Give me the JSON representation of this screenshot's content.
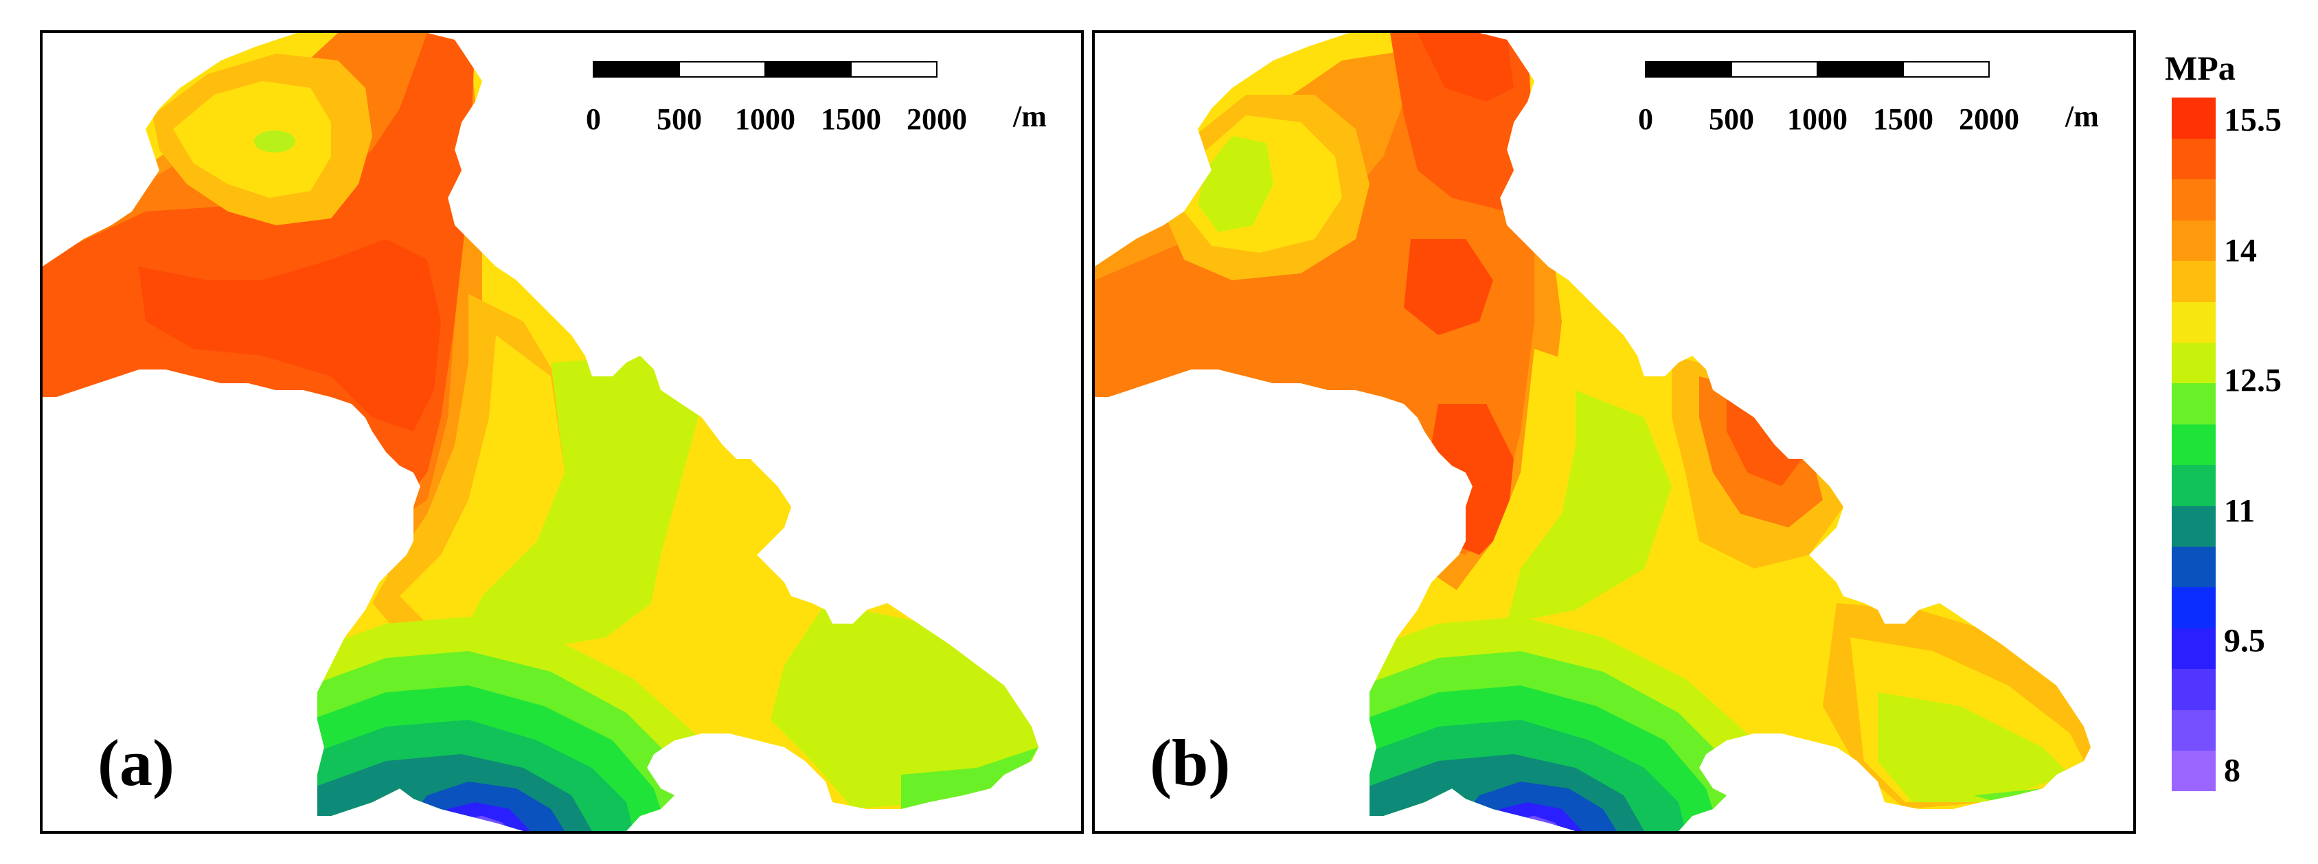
{
  "panels": [
    {
      "label": "(a)",
      "title": ""
    },
    {
      "label": "(b)",
      "title": ""
    }
  ],
  "scalebar": {
    "ticks": [
      "0",
      "500",
      "1000",
      "1500",
      "2000"
    ],
    "unit": "/m"
  },
  "colorbar": {
    "title": "MPa",
    "tick_labels": [
      "15.5",
      "14",
      "12.5",
      "11",
      "9.5",
      "8"
    ],
    "levels": [
      8,
      8.5,
      9,
      9.5,
      10,
      10.5,
      11,
      11.5,
      12,
      12.5,
      13,
      13.5,
      14,
      14.5,
      15,
      15.5,
      16
    ],
    "colors": [
      "#9a66ff",
      "#7650ff",
      "#5036ff",
      "#2a1fff",
      "#0b2dff",
      "#0a52bd",
      "#0e8a78",
      "#10c258",
      "#20e33a",
      "#6af026",
      "#c8f20c",
      "#f8e610",
      "#ffbe0e",
      "#ff9a0c",
      "#ff7d0a",
      "#ff5a08",
      "#ff3205"
    ]
  },
  "chart_data": {
    "type": "heatmap",
    "title": "",
    "unit": "MPa",
    "value_range": [
      8,
      16
    ],
    "colorbar_ticks": [
      8,
      9.5,
      11,
      12.5,
      14,
      15.5
    ],
    "scale_bar_m": [
      0,
      500,
      1000,
      1500,
      2000
    ],
    "maps": [
      {
        "name": "(a)",
        "approx_range": [
          8,
          15.5
        ]
      },
      {
        "name": "(b)",
        "approx_range": [
          8,
          15.5
        ]
      }
    ]
  }
}
